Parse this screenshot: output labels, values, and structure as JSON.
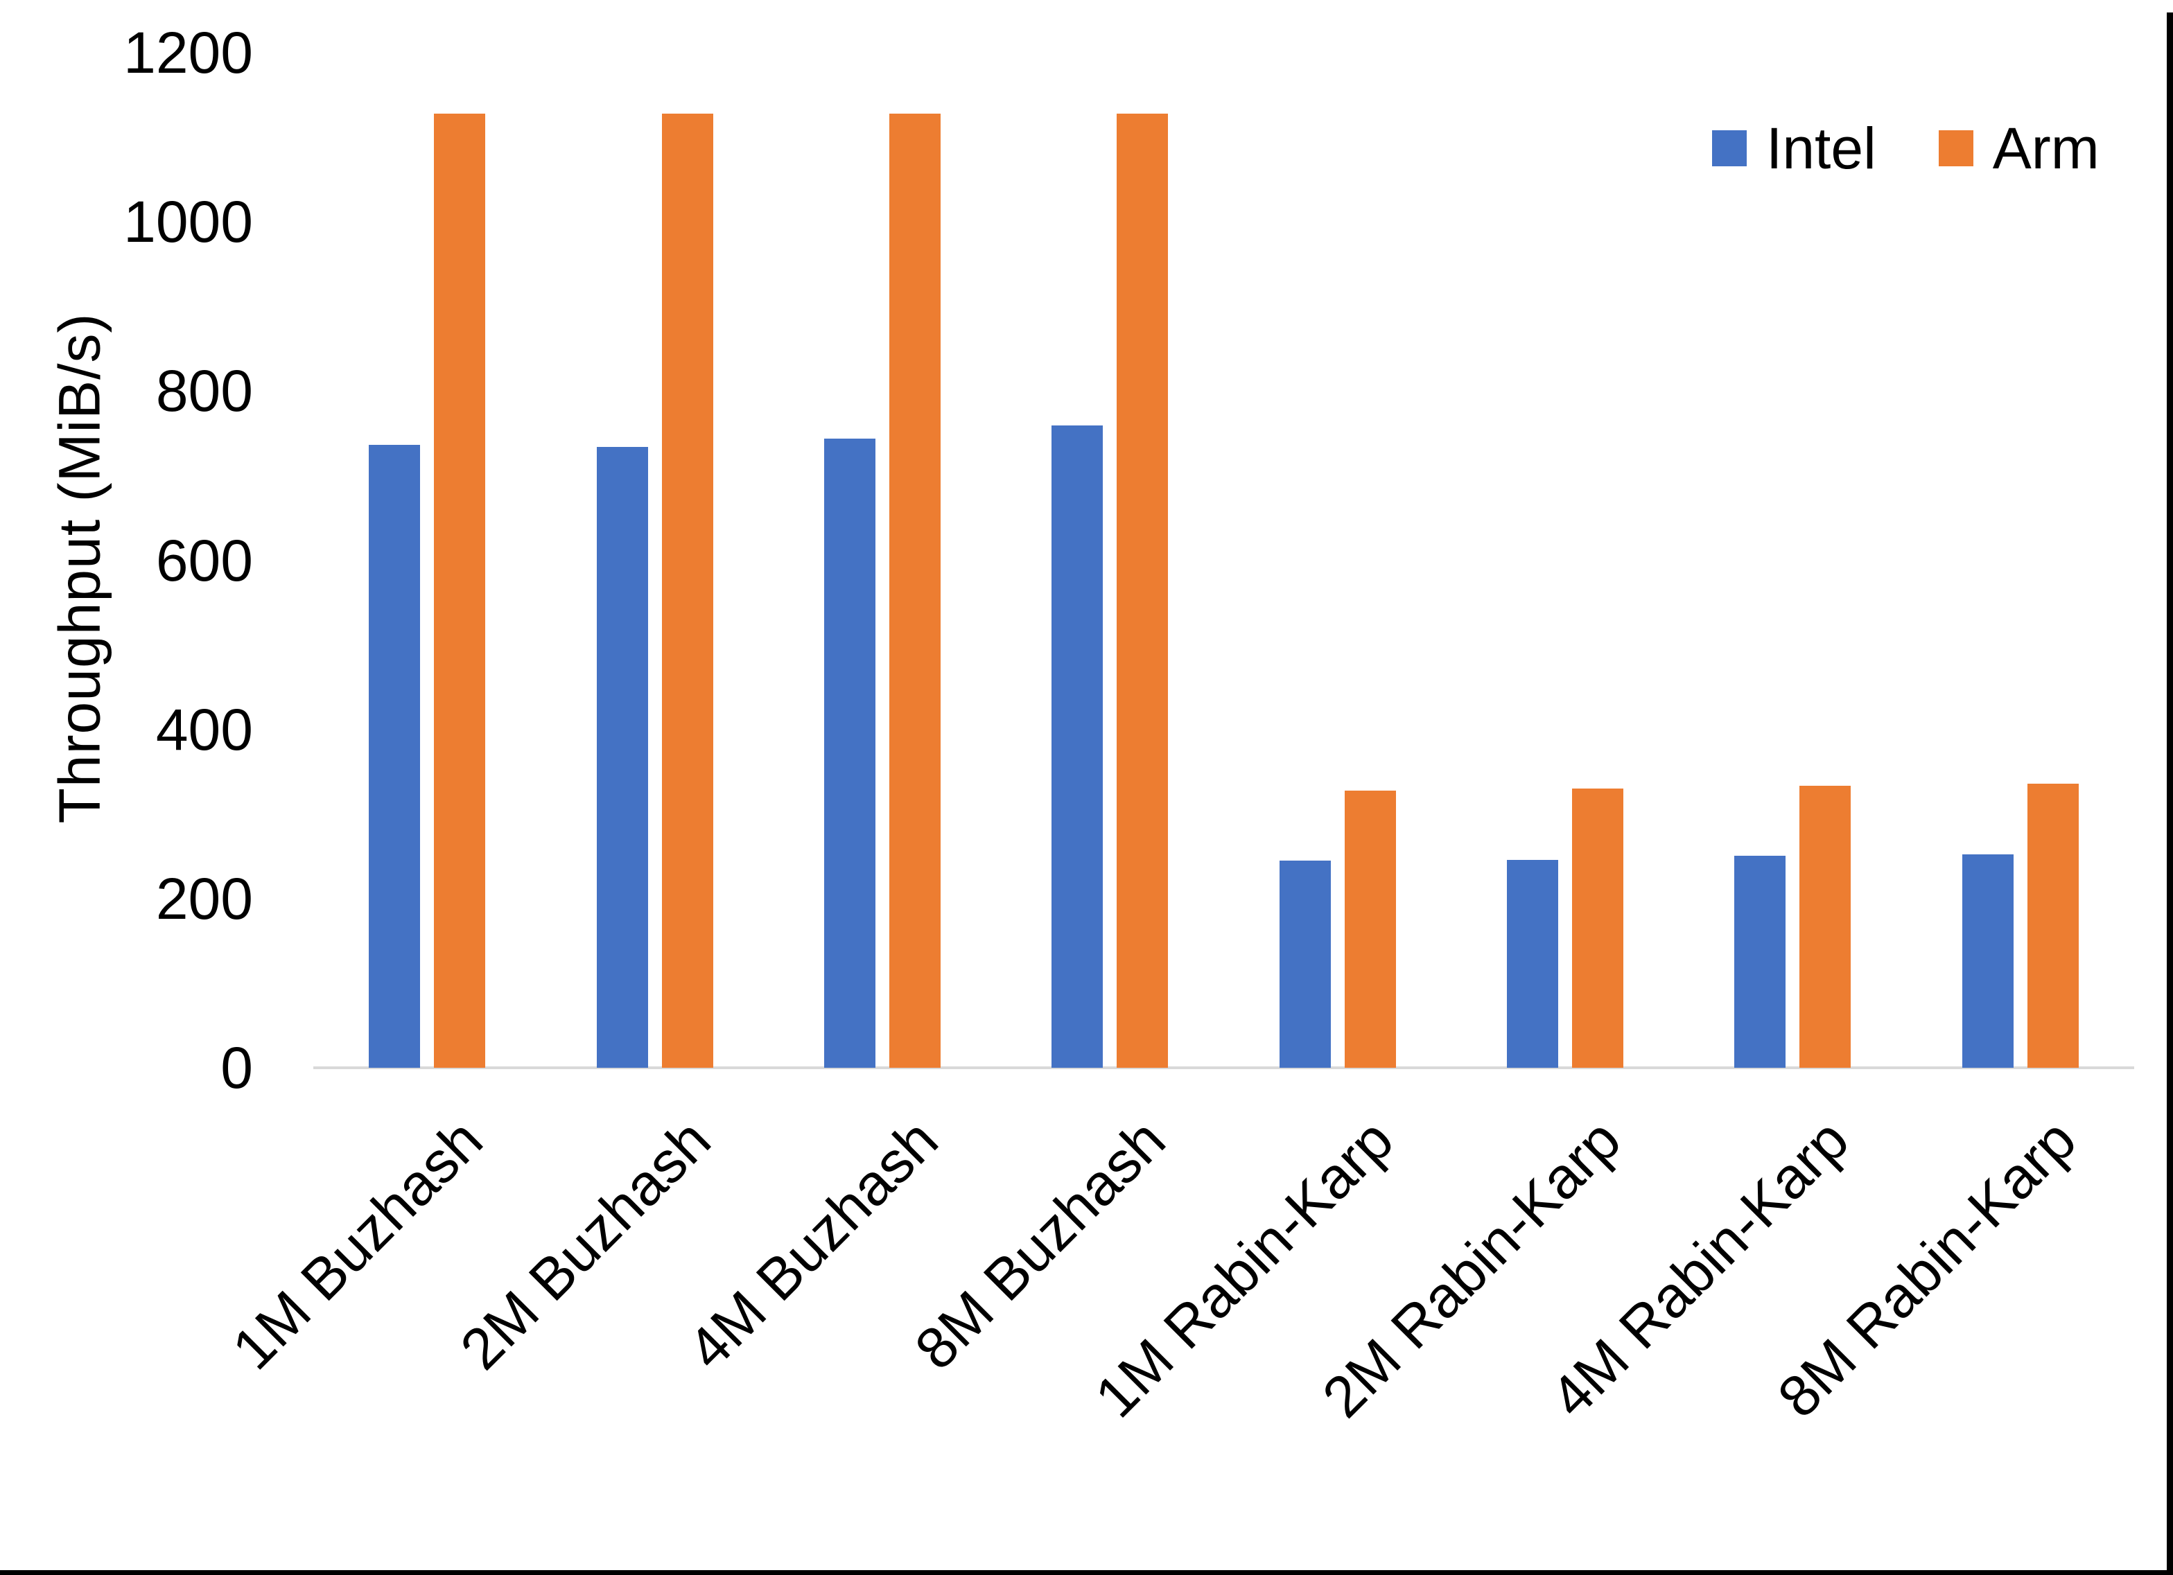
{
  "chart_data": {
    "type": "bar",
    "title": "",
    "xlabel": "",
    "ylabel": "Throughput (MiB/s)",
    "ylim": [
      0,
      1200
    ],
    "y_ticks": [
      1200,
      1000,
      800,
      600,
      400,
      200,
      0
    ],
    "grid": false,
    "legend_position": "top-right",
    "categories": [
      "1M Buzhash",
      "2M Buzhash",
      "4M Buzhash",
      "8M Buzhash",
      "1M Rabin-Karp",
      "2M Rabin-Karp",
      "4M Rabin-Karp",
      "8M Rabin-Karp"
    ],
    "series": [
      {
        "name": "Intel",
        "color": "#4472C4",
        "values": [
          736,
          734,
          744,
          759,
          245,
          246,
          251,
          252
        ]
      },
      {
        "name": "Arm",
        "color": "#ED7D31",
        "values": [
          1128,
          1128,
          1128,
          1128,
          328,
          330,
          333,
          336
        ]
      }
    ]
  }
}
